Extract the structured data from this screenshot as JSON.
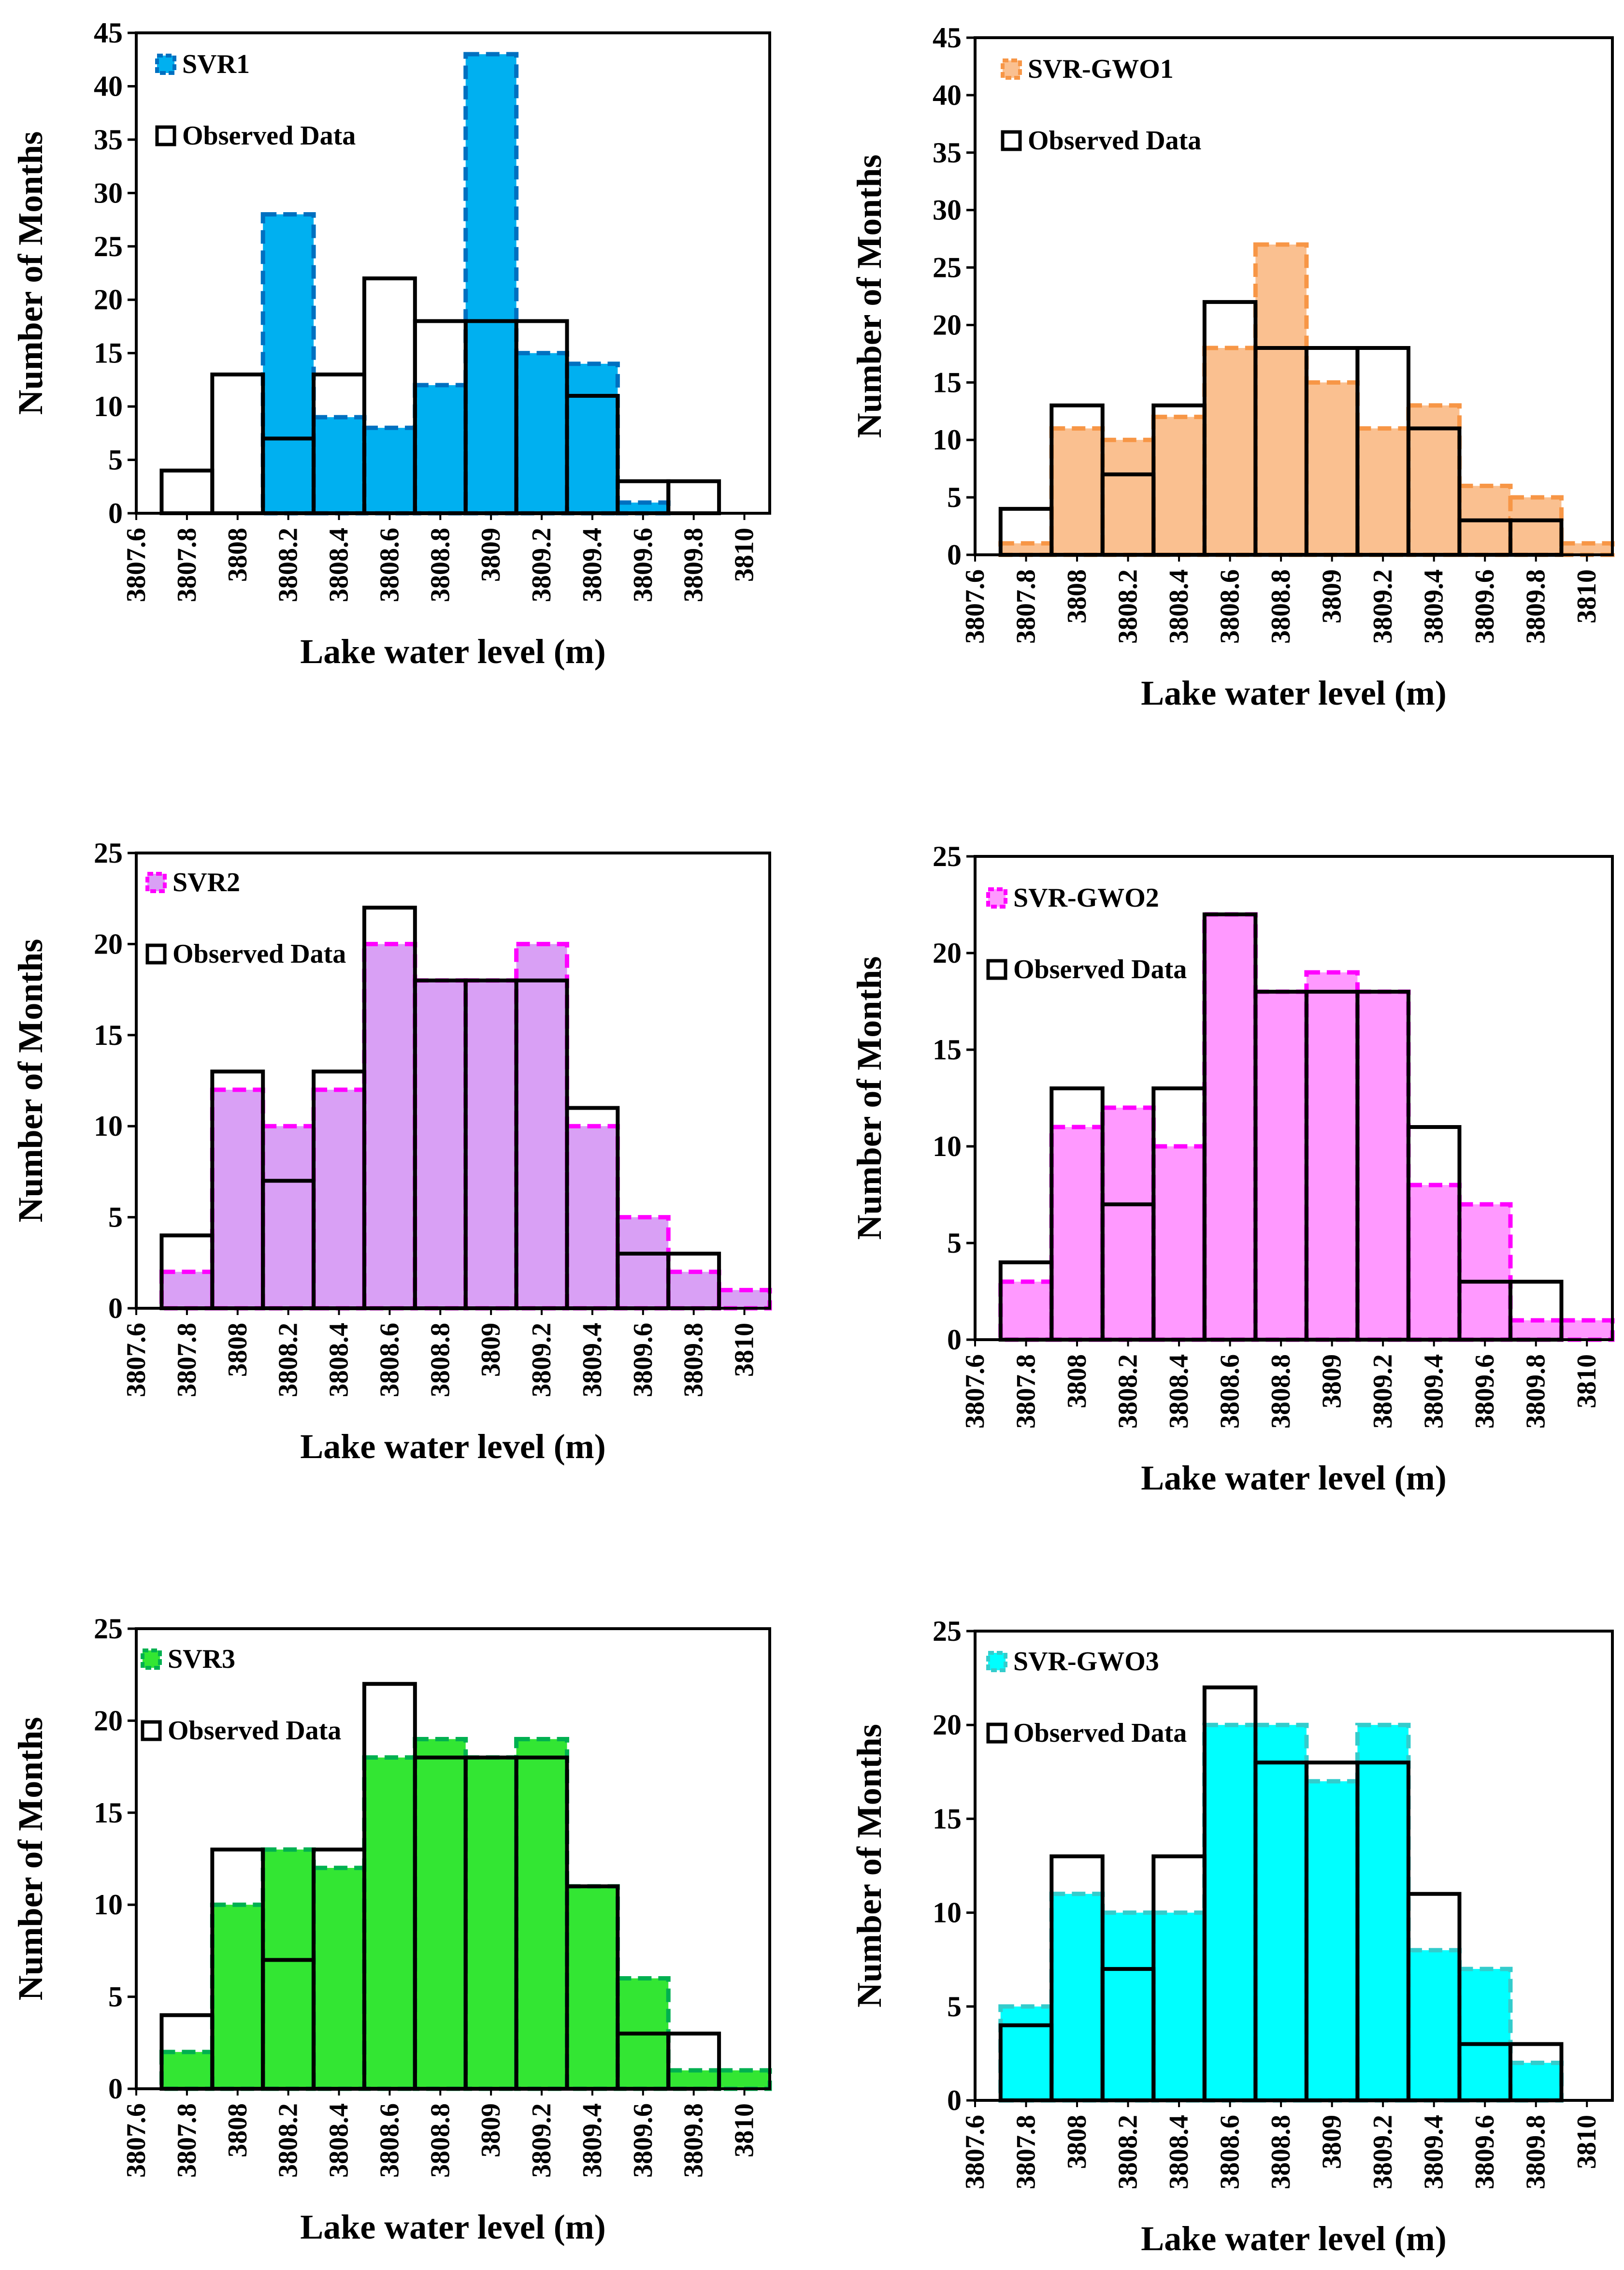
{
  "xlabel_default": "Lake water level (m)",
  "ylabel_default": "Number of Months",
  "categories": [
    "3807.6",
    "3807.8",
    "3808",
    "3808.2",
    "3808.4",
    "3808.6",
    "3808.8",
    "3809",
    "3809.2",
    "3809.4",
    "3809.6",
    "3809.8",
    "3810"
  ],
  "observed": {
    "name": "Observed Data",
    "values": [
      0,
      4,
      13,
      7,
      13,
      22,
      18,
      18,
      18,
      11,
      3,
      3,
      0
    ]
  },
  "chart_data": [
    {
      "type": "bar",
      "xlabel": "Lake water level (m)",
      "ylabel": "Number of Months",
      "ylim": [
        0,
        45
      ],
      "yticks": [
        0,
        5,
        10,
        15,
        20,
        25,
        30,
        35,
        40,
        45
      ],
      "categories": [
        "3807.6",
        "3807.8",
        "3808",
        "3808.2",
        "3808.4",
        "3808.6",
        "3808.8",
        "3809",
        "3809.2",
        "3809.4",
        "3809.6",
        "3809.8",
        "3810"
      ],
      "series": [
        {
          "name": "SVR1",
          "fill": "#00b0f0",
          "stroke": "#0070c0",
          "values": [
            0,
            0,
            0,
            28,
            9,
            8,
            12,
            43,
            15,
            14,
            1,
            0,
            0
          ]
        },
        {
          "name": "Observed Data",
          "fill": "none",
          "stroke": "#000000",
          "values": [
            0,
            4,
            13,
            7,
            13,
            22,
            18,
            18,
            18,
            11,
            3,
            3,
            0
          ]
        }
      ]
    },
    {
      "type": "bar",
      "xlabel": "Lake water level (m)",
      "ylabel": "Number of Months",
      "ylim": [
        0,
        45
      ],
      "yticks": [
        0,
        5,
        10,
        15,
        20,
        25,
        30,
        35,
        40,
        45
      ],
      "categories": [
        "3807.6",
        "3807.8",
        "3808",
        "3808.2",
        "3808.4",
        "3808.6",
        "3808.8",
        "3809",
        "3809.2",
        "3809.4",
        "3809.6",
        "3809.8",
        "3810"
      ],
      "series": [
        {
          "name": "SVR-GWO1",
          "fill": "#fac090",
          "stroke": "#f79646",
          "values": [
            0,
            1,
            11,
            10,
            12,
            18,
            27,
            15,
            11,
            13,
            6,
            5,
            1
          ]
        },
        {
          "name": "Observed Data",
          "fill": "none",
          "stroke": "#000000",
          "values": [
            0,
            4,
            13,
            7,
            13,
            22,
            18,
            18,
            18,
            11,
            3,
            3,
            0
          ]
        }
      ]
    },
    {
      "type": "bar",
      "xlabel": "Lake water level (m)",
      "ylabel": "Number of Months",
      "ylim": [
        0,
        25
      ],
      "yticks": [
        0,
        5,
        10,
        15,
        20,
        25
      ],
      "categories": [
        "3807.6",
        "3807.8",
        "3808",
        "3808.2",
        "3808.4",
        "3808.6",
        "3808.8",
        "3809",
        "3809.2",
        "3809.4",
        "3809.6",
        "3809.8",
        "3810"
      ],
      "series": [
        {
          "name": "SVR2",
          "fill": "#d9a0f5",
          "stroke": "#ff00ff",
          "values": [
            0,
            2,
            12,
            10,
            12,
            20,
            18,
            18,
            20,
            10,
            5,
            2,
            1
          ]
        },
        {
          "name": "Observed Data",
          "fill": "none",
          "stroke": "#000000",
          "values": [
            0,
            4,
            13,
            7,
            13,
            22,
            18,
            18,
            18,
            11,
            3,
            3,
            0
          ]
        }
      ]
    },
    {
      "type": "bar",
      "xlabel": "Lake water level (m)",
      "ylabel": "Number of Months",
      "ylim": [
        0,
        25
      ],
      "yticks": [
        0,
        5,
        10,
        15,
        20,
        25
      ],
      "categories": [
        "3807.6",
        "3807.8",
        "3808",
        "3808.2",
        "3808.4",
        "3808.6",
        "3808.8",
        "3809",
        "3809.2",
        "3809.4",
        "3809.6",
        "3809.8",
        "3810"
      ],
      "series": [
        {
          "name": "SVR-GWO2",
          "fill": "#ff99ff",
          "stroke": "#ff00ff",
          "values": [
            0,
            3,
            11,
            12,
            10,
            22,
            18,
            19,
            18,
            8,
            7,
            1,
            1
          ]
        },
        {
          "name": "Observed Data",
          "fill": "none",
          "stroke": "#000000",
          "values": [
            0,
            4,
            13,
            7,
            13,
            22,
            18,
            18,
            18,
            11,
            3,
            3,
            0
          ]
        }
      ]
    },
    {
      "type": "bar",
      "xlabel": "Lake water level (m)",
      "ylabel": "Number of Months",
      "ylim": [
        0,
        25
      ],
      "yticks": [
        0,
        5,
        10,
        15,
        20,
        25
      ],
      "categories": [
        "3807.6",
        "3807.8",
        "3808",
        "3808.2",
        "3808.4",
        "3808.6",
        "3808.8",
        "3809",
        "3809.2",
        "3809.4",
        "3809.6",
        "3809.8",
        "3810"
      ],
      "series": [
        {
          "name": "SVR3",
          "fill": "#33e633",
          "stroke": "#00b050",
          "values": [
            0,
            2,
            10,
            13,
            12,
            18,
            19,
            18,
            19,
            11,
            6,
            1,
            1
          ]
        },
        {
          "name": "Observed Data",
          "fill": "none",
          "stroke": "#000000",
          "values": [
            0,
            4,
            13,
            7,
            13,
            22,
            18,
            18,
            18,
            11,
            3,
            3,
            0
          ]
        }
      ]
    },
    {
      "type": "bar",
      "xlabel": "Lake water level (m)",
      "ylabel": "Number of Months",
      "ylim": [
        0,
        25
      ],
      "yticks": [
        0,
        5,
        10,
        15,
        20,
        25
      ],
      "categories": [
        "3807.6",
        "3807.8",
        "3808",
        "3808.2",
        "3808.4",
        "3808.6",
        "3808.8",
        "3809",
        "3809.2",
        "3809.4",
        "3809.6",
        "3809.8",
        "3810"
      ],
      "series": [
        {
          "name": "SVR-GWO3",
          "fill": "#00ffff",
          "stroke": "#33cccc",
          "values": [
            0,
            5,
            11,
            10,
            10,
            20,
            20,
            17,
            20,
            8,
            7,
            2,
            0
          ]
        },
        {
          "name": "Observed Data",
          "fill": "none",
          "stroke": "#000000",
          "values": [
            0,
            4,
            13,
            7,
            13,
            22,
            18,
            18,
            18,
            11,
            3,
            3,
            0
          ]
        }
      ]
    }
  ]
}
